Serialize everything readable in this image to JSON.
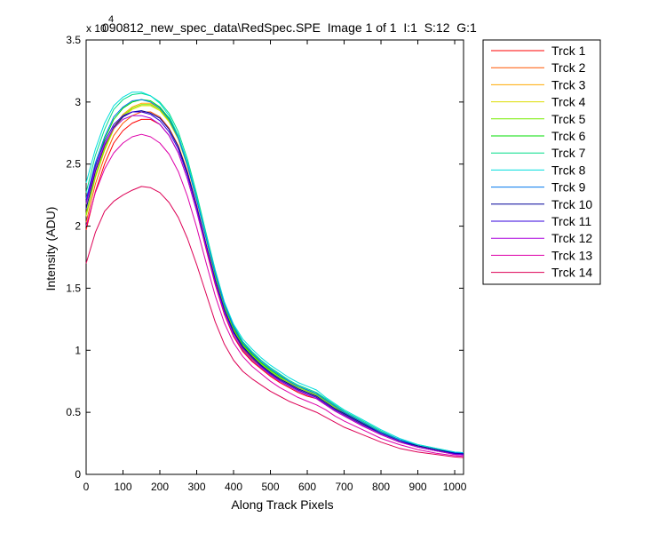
{
  "chart_data": {
    "type": "line",
    "title": "090812_new_spec_data\\RedSpec.SPE  Image 1 of 1  I:1  S:12  G:1",
    "xlabel": "Along Track Pixels",
    "ylabel": "Intensity (ADU)",
    "y_multiplier_label": "x 10",
    "y_multiplier_exponent": "4",
    "xlim": [
      0,
      1024
    ],
    "ylim": [
      0,
      3.5
    ],
    "x_ticks": [
      0,
      100,
      200,
      300,
      400,
      500,
      600,
      700,
      800,
      900,
      1000
    ],
    "y_ticks": [
      0,
      0.5,
      1,
      1.5,
      2,
      2.5,
      3,
      3.5
    ],
    "y_tick_labels": [
      "0",
      "0.5",
      "1",
      "1.5",
      "2",
      "2.5",
      "3",
      "3.5"
    ],
    "grid": false,
    "legend_position": "outside-right",
    "x": [
      0,
      25,
      50,
      75,
      100,
      125,
      150,
      175,
      200,
      225,
      250,
      275,
      300,
      325,
      350,
      375,
      400,
      425,
      450,
      475,
      500,
      525,
      550,
      575,
      600,
      625,
      650,
      675,
      700,
      750,
      800,
      850,
      900,
      950,
      1000,
      1024
    ],
    "series": [
      {
        "name": "Trck 1",
        "color": "#ff0000",
        "values": [
          1.97,
          2.28,
          2.5,
          2.67,
          2.77,
          2.83,
          2.86,
          2.86,
          2.82,
          2.73,
          2.59,
          2.38,
          2.12,
          1.82,
          1.53,
          1.29,
          1.11,
          0.99,
          0.91,
          0.85,
          0.79,
          0.74,
          0.7,
          0.66,
          0.63,
          0.61,
          0.56,
          0.51,
          0.47,
          0.39,
          0.32,
          0.26,
          0.22,
          0.19,
          0.16,
          0.155
        ]
      },
      {
        "name": "Trck 2",
        "color": "#ff5500",
        "values": [
          2.03,
          2.34,
          2.56,
          2.73,
          2.83,
          2.89,
          2.92,
          2.92,
          2.88,
          2.79,
          2.65,
          2.44,
          2.17,
          1.86,
          1.57,
          1.32,
          1.14,
          1.01,
          0.93,
          0.87,
          0.81,
          0.76,
          0.72,
          0.68,
          0.65,
          0.62,
          0.57,
          0.52,
          0.48,
          0.4,
          0.33,
          0.27,
          0.22,
          0.19,
          0.165,
          0.16
        ]
      },
      {
        "name": "Trck 3",
        "color": "#ffaa00",
        "values": [
          2.1,
          2.41,
          2.63,
          2.8,
          2.9,
          2.96,
          2.99,
          2.99,
          2.95,
          2.86,
          2.72,
          2.5,
          2.23,
          1.92,
          1.61,
          1.36,
          1.17,
          1.04,
          0.96,
          0.89,
          0.83,
          0.78,
          0.74,
          0.7,
          0.67,
          0.64,
          0.59,
          0.54,
          0.49,
          0.41,
          0.34,
          0.27,
          0.23,
          0.2,
          0.17,
          0.165
        ]
      },
      {
        "name": "Trck 4",
        "color": "#dddd00",
        "values": [
          2.08,
          2.39,
          2.61,
          2.78,
          2.88,
          2.94,
          2.97,
          2.97,
          2.93,
          2.84,
          2.7,
          2.48,
          2.21,
          1.9,
          1.6,
          1.35,
          1.16,
          1.03,
          0.95,
          0.88,
          0.82,
          0.77,
          0.73,
          0.69,
          0.66,
          0.63,
          0.58,
          0.53,
          0.49,
          0.41,
          0.33,
          0.27,
          0.23,
          0.2,
          0.17,
          0.165
        ]
      },
      {
        "name": "Trck 5",
        "color": "#77ee00",
        "values": [
          2.09,
          2.4,
          2.62,
          2.79,
          2.89,
          2.95,
          2.98,
          2.98,
          2.94,
          2.85,
          2.71,
          2.49,
          2.22,
          1.91,
          1.6,
          1.35,
          1.16,
          1.04,
          0.96,
          0.89,
          0.83,
          0.78,
          0.74,
          0.7,
          0.67,
          0.64,
          0.59,
          0.54,
          0.49,
          0.41,
          0.34,
          0.27,
          0.23,
          0.2,
          0.17,
          0.165
        ]
      },
      {
        "name": "Trck 6",
        "color": "#00dd00",
        "values": [
          2.18,
          2.48,
          2.7,
          2.86,
          2.95,
          3.0,
          3.02,
          3.01,
          2.96,
          2.87,
          2.73,
          2.51,
          2.23,
          1.92,
          1.62,
          1.37,
          1.18,
          1.05,
          0.97,
          0.9,
          0.84,
          0.79,
          0.75,
          0.71,
          0.68,
          0.65,
          0.6,
          0.55,
          0.5,
          0.42,
          0.34,
          0.28,
          0.23,
          0.2,
          0.175,
          0.17
        ]
      },
      {
        "name": "Trck 7",
        "color": "#00dd88",
        "values": [
          2.27,
          2.57,
          2.78,
          2.94,
          3.02,
          3.06,
          3.07,
          3.05,
          3.0,
          2.91,
          2.76,
          2.54,
          2.26,
          1.95,
          1.65,
          1.39,
          1.2,
          1.07,
          0.99,
          0.92,
          0.86,
          0.81,
          0.76,
          0.72,
          0.69,
          0.66,
          0.61,
          0.56,
          0.51,
          0.43,
          0.35,
          0.28,
          0.24,
          0.21,
          0.18,
          0.175
        ]
      },
      {
        "name": "Trck 8",
        "color": "#00dddd",
        "values": [
          2.35,
          2.62,
          2.83,
          2.97,
          3.04,
          3.08,
          3.08,
          3.05,
          2.99,
          2.89,
          2.73,
          2.51,
          2.23,
          1.93,
          1.64,
          1.39,
          1.21,
          1.09,
          1.01,
          0.94,
          0.88,
          0.83,
          0.78,
          0.74,
          0.71,
          0.68,
          0.62,
          0.57,
          0.52,
          0.44,
          0.36,
          0.29,
          0.24,
          0.21,
          0.18,
          0.175
        ]
      },
      {
        "name": "Trck 9",
        "color": "#0077ee",
        "values": [
          2.22,
          2.51,
          2.72,
          2.88,
          2.96,
          3.01,
          3.02,
          3.0,
          2.95,
          2.86,
          2.71,
          2.49,
          2.21,
          1.91,
          1.62,
          1.37,
          1.19,
          1.06,
          0.98,
          0.91,
          0.85,
          0.8,
          0.75,
          0.71,
          0.68,
          0.65,
          0.6,
          0.55,
          0.5,
          0.42,
          0.34,
          0.28,
          0.23,
          0.2,
          0.175,
          0.17
        ]
      },
      {
        "name": "Trck 10",
        "color": "#000099",
        "values": [
          2.14,
          2.44,
          2.65,
          2.8,
          2.88,
          2.92,
          2.93,
          2.91,
          2.87,
          2.78,
          2.64,
          2.43,
          2.16,
          1.86,
          1.57,
          1.33,
          1.15,
          1.03,
          0.95,
          0.88,
          0.82,
          0.77,
          0.73,
          0.69,
          0.66,
          0.63,
          0.58,
          0.53,
          0.49,
          0.41,
          0.33,
          0.27,
          0.23,
          0.2,
          0.17,
          0.165
        ]
      },
      {
        "name": "Trck 11",
        "color": "#3300dd",
        "values": [
          2.2,
          2.49,
          2.68,
          2.82,
          2.89,
          2.92,
          2.92,
          2.9,
          2.85,
          2.76,
          2.62,
          2.41,
          2.15,
          1.85,
          1.56,
          1.32,
          1.14,
          1.02,
          0.94,
          0.87,
          0.81,
          0.76,
          0.72,
          0.68,
          0.65,
          0.62,
          0.57,
          0.52,
          0.48,
          0.4,
          0.33,
          0.27,
          0.22,
          0.19,
          0.165,
          0.16
        ]
      },
      {
        "name": "Trck 12",
        "color": "#aa00dd",
        "values": [
          2.18,
          2.46,
          2.66,
          2.79,
          2.86,
          2.89,
          2.89,
          2.87,
          2.82,
          2.73,
          2.59,
          2.38,
          2.12,
          1.83,
          1.54,
          1.3,
          1.12,
          1.0,
          0.92,
          0.86,
          0.8,
          0.75,
          0.71,
          0.67,
          0.64,
          0.61,
          0.56,
          0.51,
          0.47,
          0.39,
          0.32,
          0.26,
          0.22,
          0.19,
          0.16,
          0.155
        ]
      },
      {
        "name": "Trck 13",
        "color": "#dd00aa",
        "values": [
          2.0,
          2.27,
          2.46,
          2.59,
          2.67,
          2.72,
          2.74,
          2.72,
          2.67,
          2.58,
          2.44,
          2.24,
          1.99,
          1.71,
          1.44,
          1.22,
          1.06,
          0.95,
          0.87,
          0.81,
          0.75,
          0.7,
          0.66,
          0.62,
          0.59,
          0.56,
          0.52,
          0.47,
          0.43,
          0.36,
          0.29,
          0.24,
          0.2,
          0.17,
          0.15,
          0.145
        ]
      },
      {
        "name": "Trck 14",
        "color": "#dd0055",
        "values": [
          1.7,
          1.95,
          2.12,
          2.2,
          2.25,
          2.29,
          2.32,
          2.31,
          2.27,
          2.19,
          2.07,
          1.9,
          1.69,
          1.46,
          1.23,
          1.05,
          0.92,
          0.83,
          0.77,
          0.72,
          0.67,
          0.63,
          0.59,
          0.56,
          0.53,
          0.5,
          0.46,
          0.42,
          0.38,
          0.32,
          0.26,
          0.21,
          0.18,
          0.16,
          0.14,
          0.135
        ]
      }
    ]
  }
}
